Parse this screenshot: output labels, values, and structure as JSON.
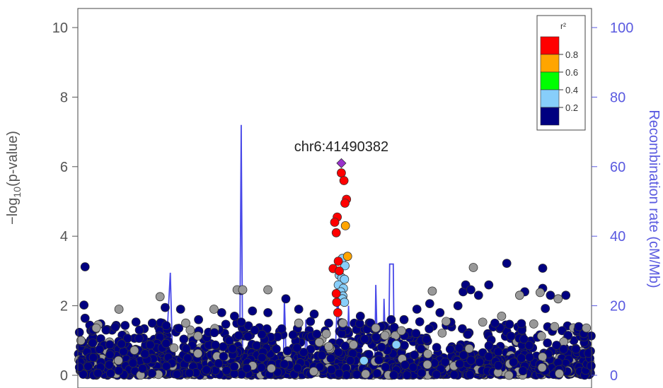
{
  "chart_data": {
    "type": "scatter",
    "title": "",
    "ylabel": "-log10(p-value)",
    "ylabel_right": "Recombination rate (cM/Mb)",
    "ylim": [
      0,
      10.4
    ],
    "ylim_right": [
      0,
      104
    ],
    "yticks": [
      "0",
      "2",
      "4",
      "6",
      "8",
      "10"
    ],
    "yticks_right": [
      "0",
      "20",
      "40",
      "60",
      "80",
      "100"
    ],
    "annotation": "chr6:41490382",
    "legend": {
      "title": "r²",
      "placement": "top-right",
      "bins": [
        {
          "label": "0.8",
          "color": "#ff0000"
        },
        {
          "label": "0.6",
          "color": "#ffa500"
        },
        {
          "label": "0.4",
          "color": "#00ff00"
        },
        {
          "label": "0.2",
          "color": "#87cefa"
        },
        {
          "label": "",
          "color": "#000080"
        }
      ]
    },
    "lead_snp": {
      "x": 0.513,
      "y": 6.1,
      "color": "#9932cc"
    },
    "series": [
      {
        "color": "#ff0000",
        "points": [
          [
            0.513,
            5.82
          ],
          [
            0.518,
            5.6
          ],
          [
            0.523,
            5.06
          ],
          [
            0.52,
            4.95
          ],
          [
            0.505,
            4.55
          ],
          [
            0.5,
            4.4
          ],
          [
            0.503,
            4.1
          ],
          [
            0.507,
            3.28
          ],
          [
            0.497,
            3.07
          ],
          [
            0.509,
            3.0
          ],
          [
            0.503,
            2.35
          ],
          [
            0.504,
            2.1
          ],
          [
            0.506,
            1.8
          ]
        ]
      },
      {
        "color": "#ffa500",
        "points": [
          [
            0.521,
            4.3
          ],
          [
            0.525,
            3.42
          ]
        ]
      },
      {
        "color": "#87cefa",
        "points": [
          [
            0.515,
            3.36
          ],
          [
            0.52,
            3.15
          ],
          [
            0.509,
            2.88
          ],
          [
            0.514,
            2.8
          ],
          [
            0.519,
            2.76
          ],
          [
            0.507,
            2.6
          ],
          [
            0.517,
            2.5
          ],
          [
            0.512,
            2.4
          ],
          [
            0.516,
            2.28
          ],
          [
            0.515,
            2.2
          ],
          [
            0.519,
            2.1
          ],
          [
            0.62,
            0.88
          ],
          [
            0.557,
            0.42
          ]
        ]
      },
      {
        "color": "#999999",
        "points": [
          [
            0.006,
            1.0
          ],
          [
            0.036,
            1.36
          ],
          [
            0.08,
            1.9
          ],
          [
            0.11,
            0.72
          ],
          [
            0.16,
            2.26
          ],
          [
            0.21,
            1.5
          ],
          [
            0.265,
            1.9
          ],
          [
            0.31,
            2.46
          ],
          [
            0.321,
            2.46
          ],
          [
            0.37,
            2.46
          ],
          [
            0.43,
            1.5
          ],
          [
            0.47,
            0.95
          ],
          [
            0.516,
            1.5
          ],
          [
            0.58,
            1.36
          ],
          [
            0.63,
            1.28
          ],
          [
            0.69,
            2.42
          ],
          [
            0.77,
            3.1
          ],
          [
            0.825,
            1.7
          ],
          [
            0.86,
            2.3
          ],
          [
            0.9,
            2.38
          ],
          [
            0.935,
            2.2
          ],
          [
            0.99,
            1.36
          ]
        ]
      },
      {
        "color": "#000080",
        "points": [
          [
            0.014,
            3.12
          ],
          [
            0.012,
            2.02
          ],
          [
            0.014,
            1.64
          ],
          [
            0.03,
            1.3
          ],
          [
            0.055,
            1.3
          ],
          [
            0.085,
            0.9
          ],
          [
            0.12,
            1.3
          ],
          [
            0.145,
            1.5
          ],
          [
            0.17,
            1.95
          ],
          [
            0.2,
            1.9
          ],
          [
            0.235,
            1.6
          ],
          [
            0.28,
            1.8
          ],
          [
            0.305,
            1.7
          ],
          [
            0.318,
            2.44
          ],
          [
            0.34,
            1.85
          ],
          [
            0.37,
            1.8
          ],
          [
            0.405,
            2.2
          ],
          [
            0.43,
            1.9
          ],
          [
            0.46,
            1.76
          ],
          [
            0.55,
            1.7
          ],
          [
            0.57,
            1.5
          ],
          [
            0.59,
            1.4
          ],
          [
            0.61,
            1.6
          ],
          [
            0.635,
            1.6
          ],
          [
            0.66,
            1.9
          ],
          [
            0.685,
            2.06
          ],
          [
            0.705,
            1.8
          ],
          [
            0.74,
            2.0
          ],
          [
            0.75,
            2.4
          ],
          [
            0.755,
            2.6
          ],
          [
            0.765,
            2.46
          ],
          [
            0.78,
            2.3
          ],
          [
            0.8,
            2.6
          ],
          [
            0.835,
            3.22
          ],
          [
            0.87,
            2.4
          ],
          [
            0.905,
            3.08
          ],
          [
            0.905,
            2.5
          ],
          [
            0.91,
            1.92
          ],
          [
            0.92,
            2.3
          ],
          [
            0.95,
            2.3
          ],
          [
            0.975,
            1.4
          ],
          [
            0.985,
            1.2
          ]
        ]
      }
    ],
    "recombination": [
      [
        0.0,
        0.8
      ],
      [
        0.17,
        1.2
      ],
      [
        0.18,
        29.5
      ],
      [
        0.185,
        1.5
      ],
      [
        0.315,
        1.5
      ],
      [
        0.318,
        72
      ],
      [
        0.321,
        1.5
      ],
      [
        0.4,
        2
      ],
      [
        0.402,
        22
      ],
      [
        0.406,
        2
      ],
      [
        0.442,
        2
      ],
      [
        0.444,
        16
      ],
      [
        0.448,
        2
      ],
      [
        0.5,
        2
      ],
      [
        0.506,
        25
      ],
      [
        0.51,
        2
      ],
      [
        0.524,
        2
      ],
      [
        0.527,
        20
      ],
      [
        0.531,
        2
      ],
      [
        0.578,
        2
      ],
      [
        0.58,
        26
      ],
      [
        0.584,
        2
      ],
      [
        0.594,
        2
      ],
      [
        0.596,
        22
      ],
      [
        0.6,
        2
      ],
      [
        0.605,
        3
      ],
      [
        0.607,
        32
      ],
      [
        0.614,
        32
      ],
      [
        0.616,
        3
      ],
      [
        0.65,
        2
      ],
      [
        1.0,
        1.5
      ]
    ]
  }
}
